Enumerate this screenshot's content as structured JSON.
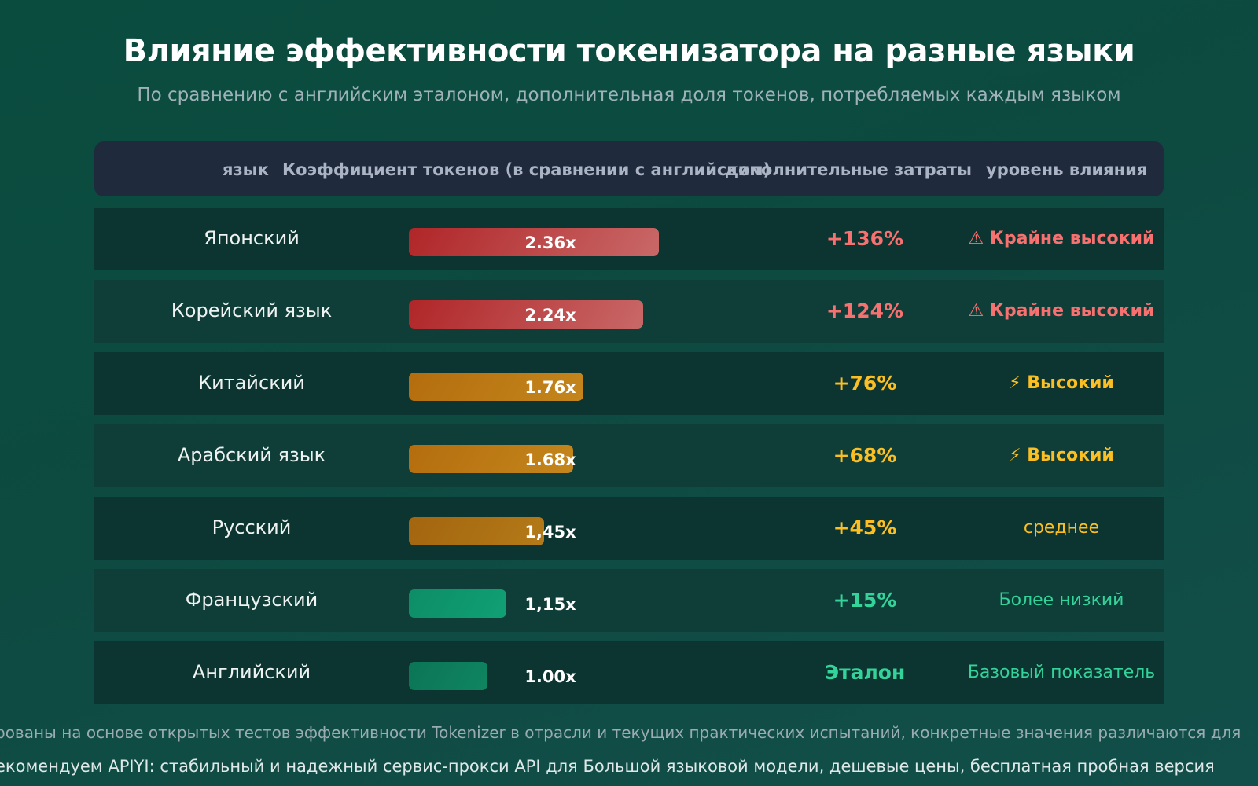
{
  "title": "Влияние эффективности токенизатора на разные языки",
  "subtitle": "По сравнению с английским эталоном, дополнительная доля токенов, потребляемых каждым языком",
  "chart_data": {
    "type": "table",
    "columns": [
      "язык",
      "Коэффициент токенов (в сравнении с английским)",
      "дополнительные затраты",
      "уровень влияния"
    ],
    "rows": [
      {
        "language": "Японский",
        "ratio": 2.36,
        "ratio_label": "2.36x",
        "extra": "+136%",
        "level": "⚠ Крайне высокий",
        "level_key": "extreme"
      },
      {
        "language": "Корейский язык",
        "ratio": 2.24,
        "ratio_label": "2.24x",
        "extra": "+124%",
        "level": "⚠ Крайне высокий",
        "level_key": "extreme"
      },
      {
        "language": "Китайский",
        "ratio": 1.76,
        "ratio_label": "1.76x",
        "extra": "+76%",
        "level": "⚡ Высокий",
        "level_key": "high"
      },
      {
        "language": "Арабский язык",
        "ratio": 1.68,
        "ratio_label": "1.68x",
        "extra": "+68%",
        "level": "⚡ Высокий",
        "level_key": "high"
      },
      {
        "language": "Русский",
        "ratio": 1.45,
        "ratio_label": "1,45x",
        "extra": "+45%",
        "level": "среднее",
        "level_key": "medium"
      },
      {
        "language": "Французский",
        "ratio": 1.15,
        "ratio_label": "1,15x",
        "extra": "+15%",
        "level": "Более низкий",
        "level_key": "low"
      },
      {
        "language": "Английский",
        "ratio": 1.0,
        "ratio_label": "1.00x",
        "extra": "Эталон",
        "level": "Базовый показатель",
        "level_key": "base"
      }
    ]
  },
  "colors": {
    "extreme": "#f87171",
    "high": "#fbbf24",
    "medium": "#fbbf24",
    "low": "#34d399",
    "base": "#34d399"
  },
  "footer": {
    "note": "рованы на основе открытых тестов эффективности Tokenizer в отрасли и текущих практических испытаний, конкретные значения различаются для",
    "promo": "екомендуем APIYI: стабильный и надежный сервис-прокси API для Большой языковой модели, дешевые цены, бесплатная пробная версия"
  }
}
